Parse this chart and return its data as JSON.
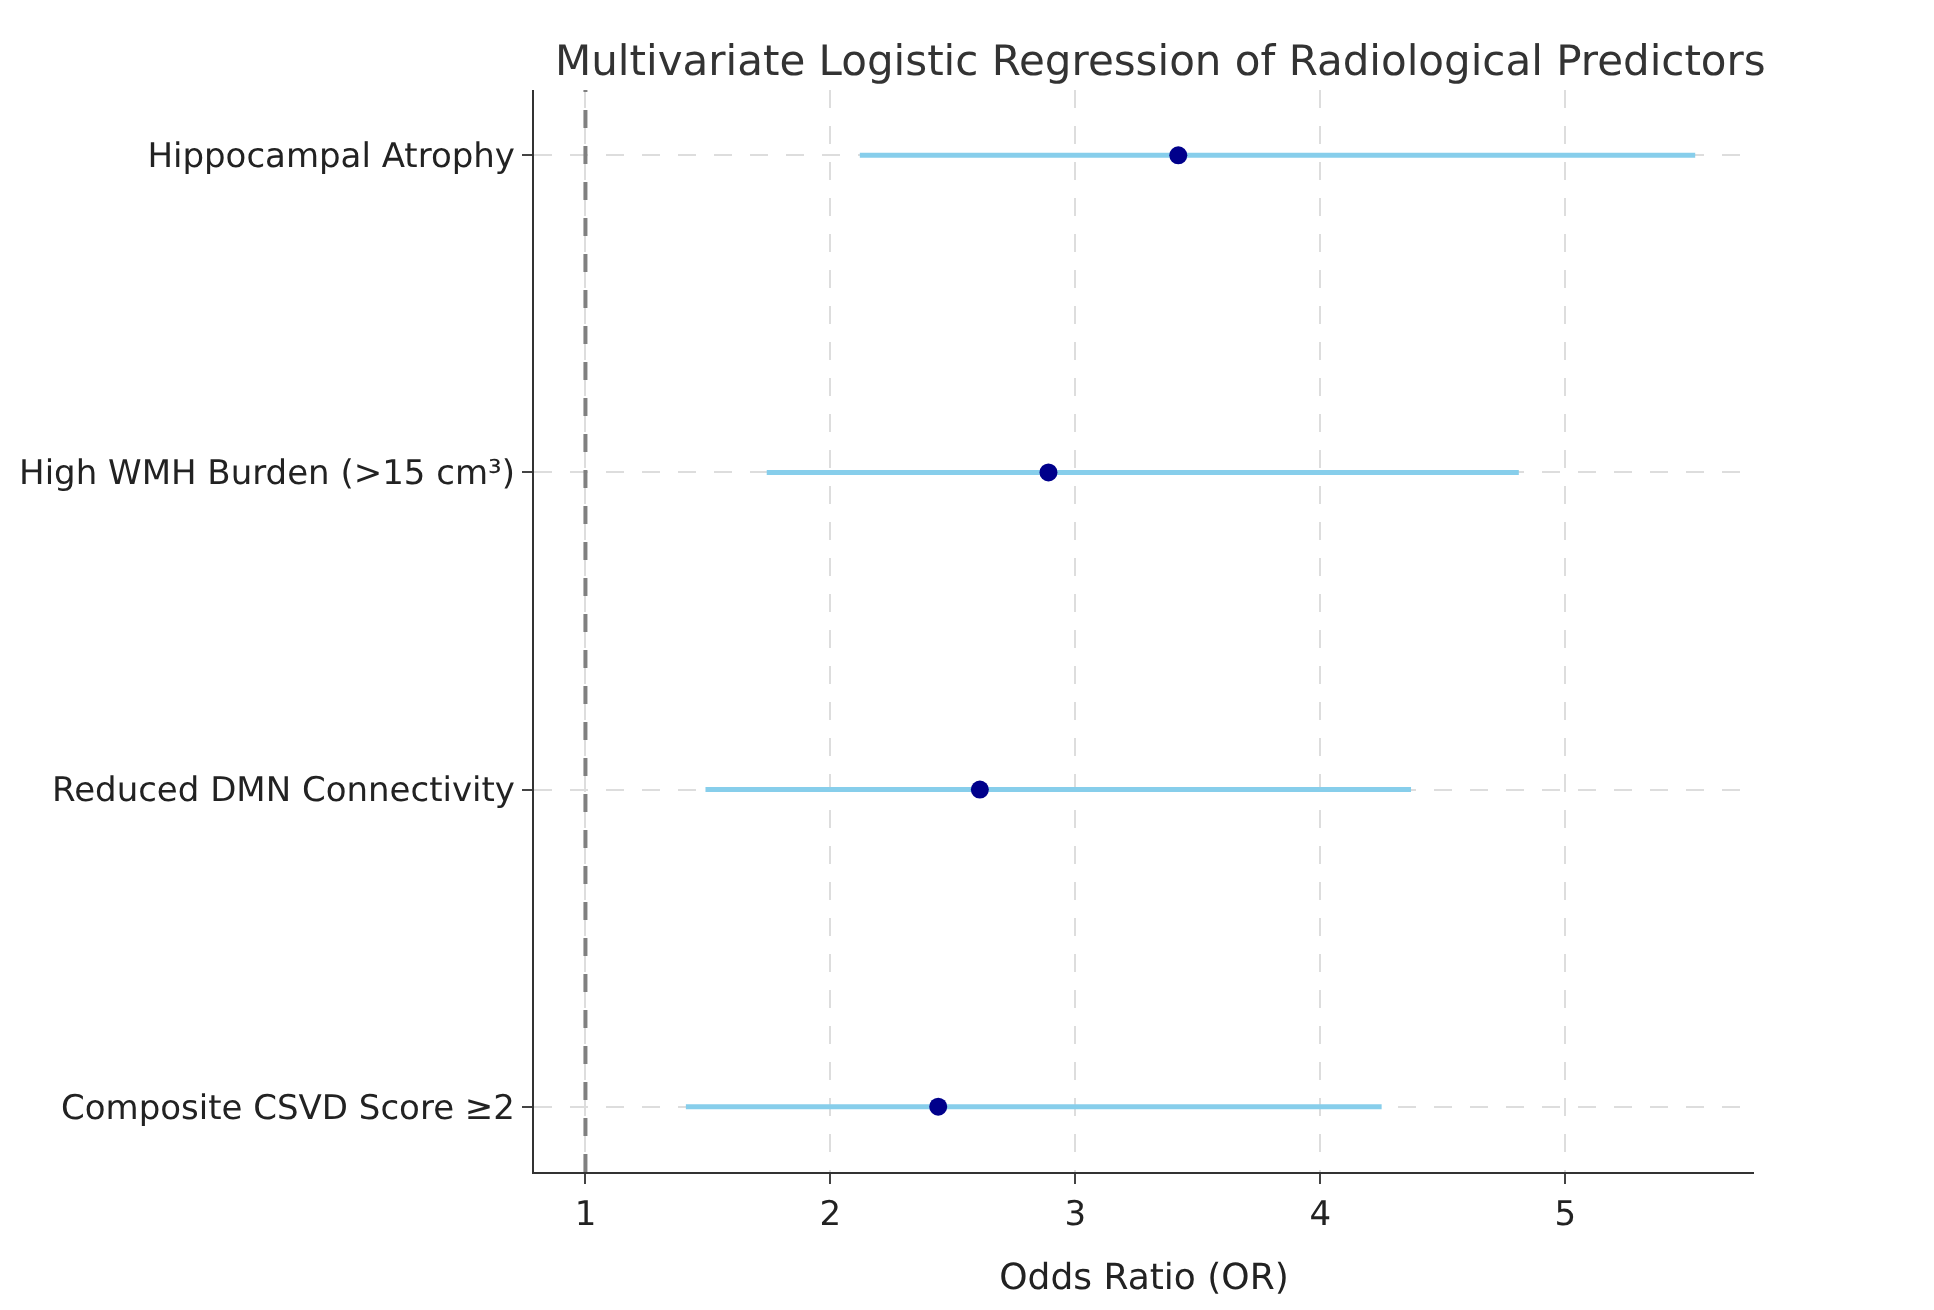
{
  "chart_data": {
    "type": "scatter",
    "orientation": "horizontal",
    "title": "Multivariate Logistic Regression of Radiological Predictors",
    "xlabel": "Odds Ratio (OR)",
    "categories": [
      "Hippocampal Atrophy",
      "High WMH Burden (>15 cm³)",
      "Reduced DMN Connectivity",
      "Composite CSVD Score ≥2"
    ],
    "series": [
      {
        "color": "#00008b",
        "values": [
          3.42,
          2.89,
          2.61,
          2.44
        ],
        "errors": [
          [
            2.12,
            5.53
          ],
          [
            1.74,
            4.81
          ],
          [
            1.49,
            4.37
          ],
          [
            1.41,
            4.25
          ]
        ]
      }
    ],
    "xlim": [
      0.79,
      5.77
    ],
    "xticks": [
      1,
      2,
      3,
      4,
      5
    ],
    "ref_lines": [
      {
        "axis": "x",
        "value": 1,
        "color": "#808080",
        "line_style": "dashed"
      }
    ],
    "grid": true,
    "marker": "circle"
  }
}
